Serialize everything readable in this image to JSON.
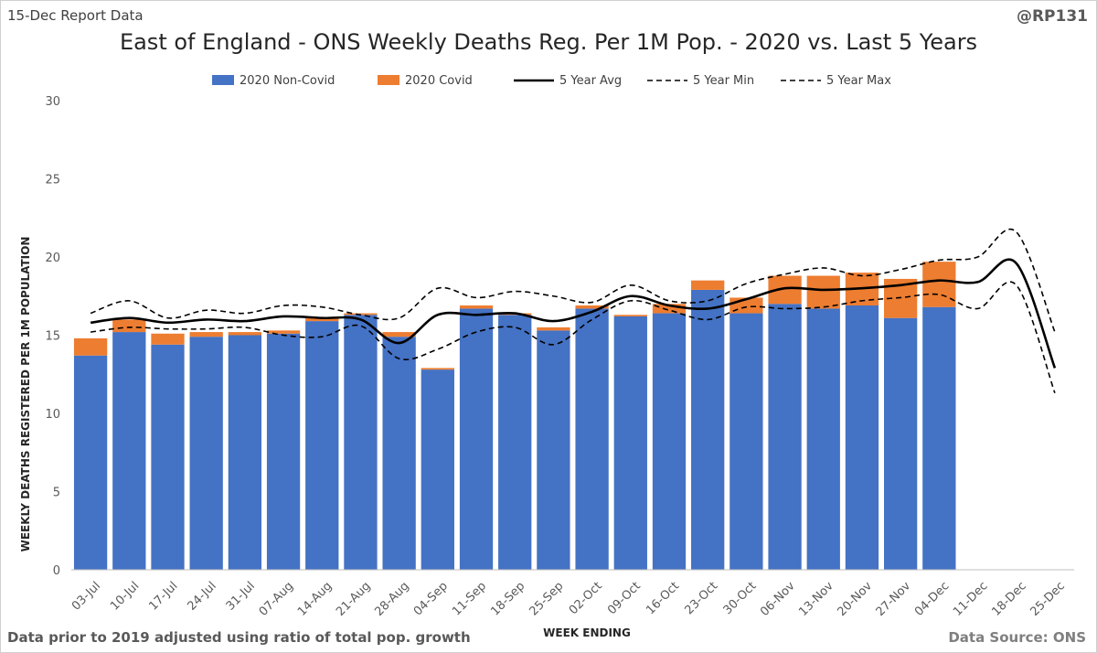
{
  "header": {
    "report_label": "15-Dec Report Data",
    "handle": "@RP131"
  },
  "footer": {
    "note": "Data prior to 2019 adjusted using ratio of total pop. growth",
    "source": "Data Source: ONS"
  },
  "chart_data": {
    "type": "bar",
    "title": "East of England - ONS Weekly Deaths Reg. Per 1M Pop. - 2020 vs. Last 5 Years",
    "xlabel": "WEEK ENDING",
    "ylabel": "WEEKLY DEATHS REGISTERED PER 1M POPULATION",
    "ylim": [
      0,
      30
    ],
    "yticks": [
      0,
      5,
      10,
      15,
      20,
      25,
      30
    ],
    "grid": false,
    "legend_position": "top",
    "categories": [
      "03-Jul",
      "10-Jul",
      "17-Jul",
      "24-Jul",
      "31-Jul",
      "07-Aug",
      "14-Aug",
      "21-Aug",
      "28-Aug",
      "04-Sep",
      "11-Sep",
      "18-Sep",
      "25-Sep",
      "02-Oct",
      "09-Oct",
      "16-Oct",
      "23-Oct",
      "30-Oct",
      "06-Nov",
      "13-Nov",
      "20-Nov",
      "27-Nov",
      "04-Dec",
      "11-Dec",
      "18-Dec",
      "25-Dec"
    ],
    "series": [
      {
        "name": "2020 Non-Covid",
        "kind": "bar",
        "color": "#4472c4",
        "values": [
          13.7,
          15.2,
          14.4,
          14.9,
          15.0,
          15.1,
          15.9,
          16.3,
          14.9,
          12.8,
          16.7,
          16.3,
          15.3,
          16.7,
          16.2,
          16.4,
          17.9,
          16.4,
          17.0,
          16.7,
          16.9,
          16.1,
          16.8,
          null,
          null,
          null
        ]
      },
      {
        "name": "2020 Covid",
        "kind": "bar",
        "color": "#ed7d31",
        "values": [
          1.1,
          0.8,
          0.7,
          0.3,
          0.2,
          0.2,
          0.2,
          0.1,
          0.3,
          0.1,
          0.2,
          0.1,
          0.2,
          0.2,
          0.1,
          0.6,
          0.6,
          1.0,
          1.8,
          2.1,
          2.1,
          2.5,
          2.9,
          null,
          null,
          null
        ]
      },
      {
        "name": "5 Year Avg",
        "kind": "line",
        "style": "solid",
        "color": "#000000",
        "values": [
          15.8,
          16.1,
          15.8,
          16.0,
          15.9,
          16.2,
          16.1,
          16.0,
          14.5,
          16.3,
          16.3,
          16.4,
          15.9,
          16.5,
          17.5,
          16.9,
          16.7,
          17.3,
          18.0,
          17.9,
          18.0,
          18.2,
          18.5,
          18.4,
          19.6,
          12.9
        ]
      },
      {
        "name": "5 Year Min",
        "kind": "line",
        "style": "dashed",
        "color": "#000000",
        "values": [
          15.2,
          15.5,
          15.4,
          15.4,
          15.5,
          15.0,
          14.9,
          15.6,
          13.5,
          14.1,
          15.2,
          15.5,
          14.4,
          16.0,
          17.2,
          16.6,
          16.0,
          16.8,
          16.7,
          16.8,
          17.2,
          17.4,
          17.6,
          16.7,
          18.2,
          11.3
        ]
      },
      {
        "name": "5 Year Max",
        "kind": "line",
        "style": "dashed",
        "color": "#000000",
        "values": [
          16.4,
          17.2,
          16.1,
          16.6,
          16.4,
          16.9,
          16.8,
          16.3,
          16.1,
          18.0,
          17.4,
          17.8,
          17.5,
          17.1,
          18.2,
          17.2,
          17.2,
          18.3,
          18.9,
          19.3,
          18.8,
          19.2,
          19.8,
          20.0,
          21.6,
          15.2
        ]
      }
    ]
  }
}
